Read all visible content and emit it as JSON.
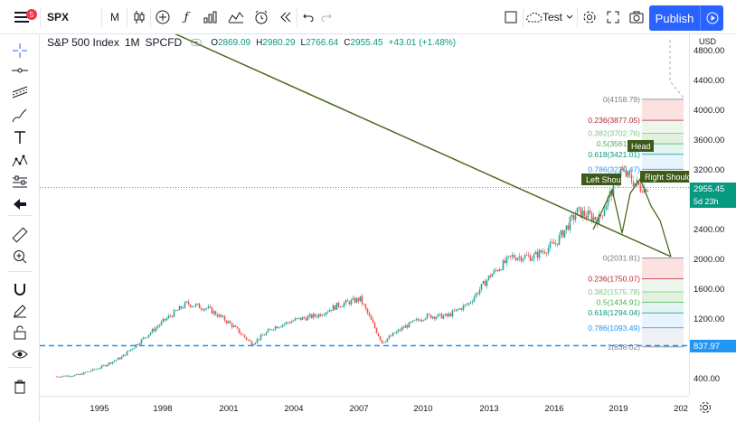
{
  "toolbar": {
    "notification_count": "5",
    "symbol": "SPX",
    "interval": "M",
    "layout_name": "Test",
    "publish_label": "Publish"
  },
  "legend": {
    "symbol": "S&P 500 Index",
    "interval": "1M",
    "exchange": "SPCFD",
    "open_label": "O",
    "open": "2869.09",
    "high_label": "H",
    "high": "2980.29",
    "low_label": "L",
    "low": "2766.64",
    "close_label": "C",
    "close": "2955.45",
    "change": "+43.01 (+1.48%)"
  },
  "price_scale": {
    "currency": "USD",
    "ticks": [
      "4800.00",
      "4400.00",
      "4000.00",
      "3600.00",
      "3200.00",
      "2800.00",
      "2400.00",
      "2000.00",
      "1600.00",
      "1200.00",
      "800.00",
      "400.00"
    ],
    "last_price": "2955.45",
    "countdown": "5d 23h",
    "horizontal_line_price": "837.97"
  },
  "time_scale": {
    "ticks": [
      "1995",
      "1998",
      "2001",
      "2004",
      "2007",
      "2010",
      "2013",
      "2016",
      "2019",
      "202"
    ]
  },
  "annotations": {
    "head": "Head",
    "left_shoulder": "Left Shoulder",
    "right_shoulder": "Right Shoulder"
  },
  "fib_upper": [
    {
      "label": "0(4158.79)",
      "color": "#787b86"
    },
    {
      "label": "0.236(3877.05)",
      "color": "#b22833"
    },
    {
      "label": "0.382(3702.76)",
      "color": "#81c784"
    },
    {
      "label": "0.5(3561.89)",
      "color": "#4caf50"
    },
    {
      "label": "0.618(3421.01)",
      "color": "#089981"
    },
    {
      "label": "0.786(3220.47)",
      "color": "#2196f3"
    }
  ],
  "fib_lower": [
    {
      "label": "0(2031.81)",
      "color": "#787b86"
    },
    {
      "label": "0.236(1750.07)",
      "color": "#b22833"
    },
    {
      "label": "0.382(1575.78)",
      "color": "#81c784"
    },
    {
      "label": "0.5(1434.91)",
      "color": "#4caf50"
    },
    {
      "label": "0.618(1294.04)",
      "color": "#089981"
    },
    {
      "label": "0.786(1093.49)",
      "color": "#2196f3"
    },
    {
      "label": "1(838.02)",
      "color": "#787b86"
    }
  ],
  "chart_data": {
    "type": "line",
    "title": "S&P 500 Index",
    "x_years": [
      1993,
      1994,
      1995,
      1996,
      1997,
      1998,
      1999,
      2000,
      2001,
      2002,
      2003,
      2004,
      2005,
      2006,
      2007,
      2008,
      2009,
      2010,
      2011,
      2012,
      2013,
      2014,
      2015,
      2016,
      2017,
      2018,
      2019,
      2020
    ],
    "y_close": [
      440,
      460,
      560,
      700,
      950,
      1200,
      1420,
      1350,
      1150,
      880,
      1100,
      1200,
      1260,
      1400,
      1480,
      900,
      1100,
      1250,
      1250,
      1420,
      1800,
      2050,
      2050,
      2230,
      2650,
      2550,
      3200,
      2955
    ],
    "ylim": [
      350,
      4900
    ],
    "colors": {
      "up": "#26a69a",
      "down": "#ef5350"
    }
  }
}
